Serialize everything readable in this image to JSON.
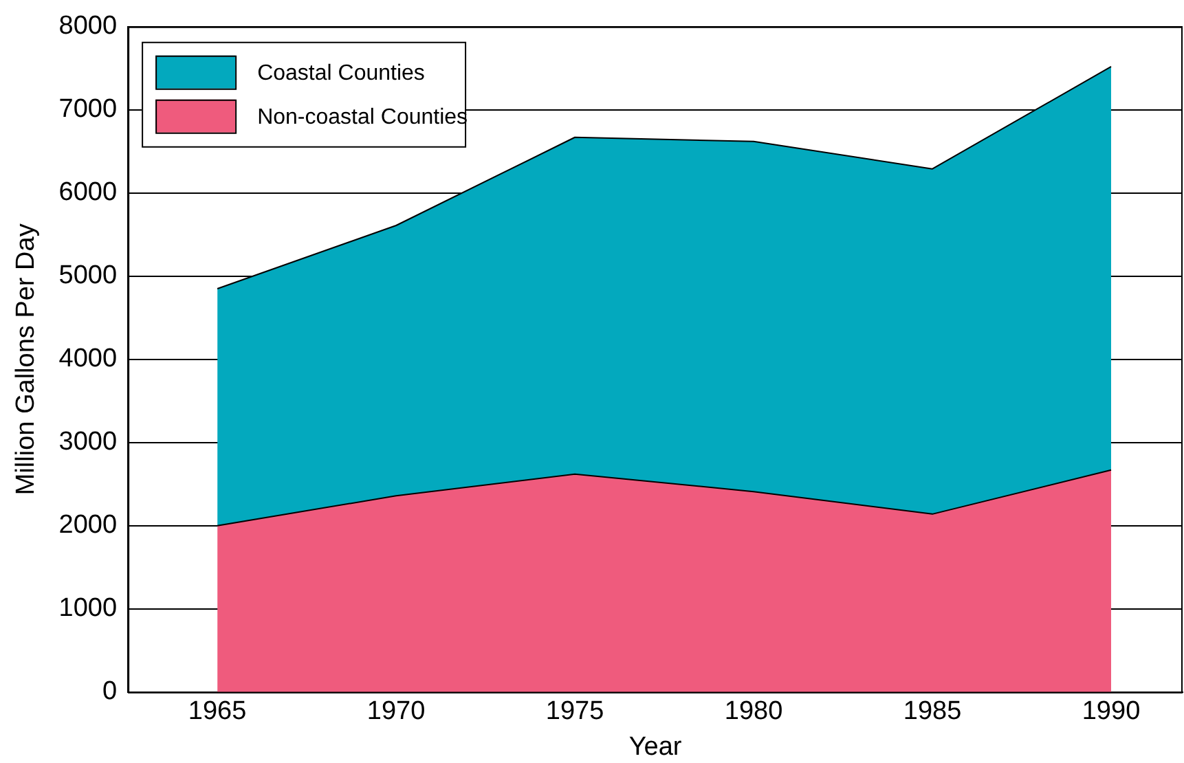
{
  "chart_data": {
    "type": "area",
    "xlabel": "Year",
    "ylabel": "Million Gallons Per Day",
    "x": [
      1965,
      1970,
      1975,
      1980,
      1985,
      1990
    ],
    "xlim": [
      1962.5,
      1992
    ],
    "xticks": [
      1965,
      1970,
      1975,
      1980,
      1985,
      1990
    ],
    "ylim": [
      0,
      8000
    ],
    "yticks": [
      0,
      1000,
      2000,
      3000,
      4000,
      5000,
      6000,
      7000,
      8000
    ],
    "stacked": true,
    "grid": "y",
    "legend": "top left",
    "marker": "none",
    "series": [
      {
        "name": "Non-coastal Counties",
        "color": "#ef5b7d",
        "values": [
          2000,
          2360,
          2620,
          2410,
          2140,
          2670
        ]
      },
      {
        "name": "Coastal Counties",
        "color": "#03a9be",
        "values": [
          2850,
          3250,
          4050,
          4210,
          4150,
          4850
        ]
      }
    ]
  }
}
